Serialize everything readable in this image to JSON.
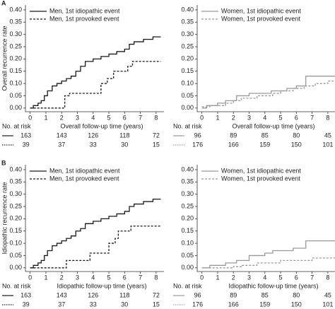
{
  "chart_data": [
    {
      "type": "line",
      "step": true,
      "panel_label": "A",
      "y_label": "Overall recurrence rate",
      "x_label": "Overall follow-up time (years)",
      "at_risk_label": "No. at risk",
      "legend": "upper left",
      "xlim": [
        -0.3,
        8.5
      ],
      "xticks": [
        0,
        1,
        2,
        3,
        4,
        5,
        6,
        7,
        8
      ],
      "ylim": [
        -0.015,
        0.42
      ],
      "yticks": [
        {
          "value": 0,
          "label": "0.00"
        },
        {
          "value": 0.05,
          "label": "0.05"
        },
        {
          "value": 0.1,
          "label": "0.10"
        },
        {
          "value": 0.15,
          "label": "0.15"
        },
        {
          "value": 0.2,
          "label": "0.20"
        },
        {
          "value": 0.25,
          "label": "0.25"
        },
        {
          "value": 0.3,
          "label": "0.30"
        },
        {
          "value": 0.35,
          "label": "0.35"
        },
        {
          "value": 0.4,
          "label": "0.40"
        }
      ],
      "series": [
        {
          "name": "Men, 1st idiopathic event",
          "color": "#1a1a1a",
          "dash": false,
          "at_risk": [
            163,
            143,
            126,
            118,
            72
          ],
          "x": [
            0,
            0.2,
            0.5,
            0.7,
            0.9,
            1.1,
            1.4,
            1.7,
            2.0,
            2.3,
            2.6,
            2.9,
            3.2,
            3.5,
            4.0,
            4.5,
            5.0,
            5.5,
            6.0,
            6.3,
            6.6,
            7.2,
            7.8,
            8.3
          ],
          "values": [
            0,
            0.01,
            0.02,
            0.03,
            0.05,
            0.07,
            0.09,
            0.1,
            0.11,
            0.12,
            0.13,
            0.15,
            0.17,
            0.19,
            0.2,
            0.21,
            0.22,
            0.23,
            0.24,
            0.26,
            0.27,
            0.28,
            0.29,
            0.29
          ]
        },
        {
          "name": "Men, 1st provoked event",
          "color": "#1a1a1a",
          "dash": true,
          "at_risk": [
            39,
            37,
            33,
            30,
            15
          ],
          "x": [
            0,
            2.2,
            2.5,
            4.5,
            4.9,
            5.3,
            6.2,
            6.5,
            8.3
          ],
          "values": [
            0,
            0.05,
            0.06,
            0.1,
            0.12,
            0.15,
            0.17,
            0.19,
            0.19
          ]
        }
      ]
    },
    {
      "type": "line",
      "step": true,
      "x_label": "Overall follow-up time (years)",
      "at_risk_label": "No. at risk",
      "legend": "upper left",
      "xlim": [
        -0.3,
        8.5
      ],
      "xticks": [
        0,
        1,
        2,
        3,
        4,
        5,
        6,
        7,
        8
      ],
      "ylim": [
        -0.015,
        0.42
      ],
      "yticks": [
        {
          "value": 0,
          "label": "0.00"
        },
        {
          "value": 0.05,
          "label": "0.05"
        },
        {
          "value": 0.1,
          "label": "0.10"
        },
        {
          "value": 0.15,
          "label": "0.15"
        },
        {
          "value": 0.2,
          "label": "0.20"
        },
        {
          "value": 0.25,
          "label": "0.25"
        },
        {
          "value": 0.3,
          "label": "0.30"
        },
        {
          "value": 0.35,
          "label": "0.35"
        },
        {
          "value": 0.4,
          "label": "0.40"
        }
      ],
      "series": [
        {
          "name": "Women, 1st idiopathic event",
          "color": "#9a9a9a",
          "dash": false,
          "at_risk": [
            96,
            89,
            85,
            80,
            45
          ],
          "x": [
            0,
            0.3,
            1.0,
            1.5,
            2.2,
            3.0,
            4.4,
            5.4,
            6.0,
            6.6,
            8.5
          ],
          "values": [
            0,
            0.01,
            0.02,
            0.03,
            0.05,
            0.06,
            0.07,
            0.08,
            0.09,
            0.13,
            0.13
          ]
        },
        {
          "name": "Women, 1st provoked event",
          "color": "#9a9a9a",
          "dash": true,
          "at_risk": [
            176,
            166,
            159,
            150,
            101
          ],
          "x": [
            0,
            0.5,
            1.5,
            2.0,
            2.5,
            3.5,
            4.5,
            5.0,
            5.8,
            6.5,
            7.2,
            8.0,
            8.5
          ],
          "values": [
            0.005,
            0.01,
            0.02,
            0.03,
            0.04,
            0.05,
            0.06,
            0.07,
            0.08,
            0.09,
            0.1,
            0.11,
            0.11
          ]
        }
      ]
    },
    {
      "type": "line",
      "step": true,
      "panel_label": "B",
      "y_label": "Idiopathic recurrence rate",
      "x_label": "Idiopathic follow-up time (years)",
      "at_risk_label": "No. at risk",
      "legend": "upper left",
      "xlim": [
        -0.3,
        8.5
      ],
      "xticks": [
        0,
        1,
        2,
        3,
        4,
        5,
        6,
        7,
        8
      ],
      "ylim": [
        -0.015,
        0.42
      ],
      "yticks": [
        {
          "value": 0,
          "label": "0.00"
        },
        {
          "value": 0.05,
          "label": "0.05"
        },
        {
          "value": 0.1,
          "label": "0.10"
        },
        {
          "value": 0.15,
          "label": "0.15"
        },
        {
          "value": 0.2,
          "label": "0.20"
        },
        {
          "value": 0.25,
          "label": "0.25"
        },
        {
          "value": 0.3,
          "label": "0.30"
        },
        {
          "value": 0.35,
          "label": "0.35"
        },
        {
          "value": 0.4,
          "label": "0.40"
        }
      ],
      "series": [
        {
          "name": "Men, 1st idiopathic event",
          "color": "#1a1a1a",
          "dash": false,
          "at_risk": [
            163,
            143,
            126,
            118,
            72
          ],
          "x": [
            0,
            0.2,
            0.5,
            0.7,
            0.9,
            1.1,
            1.4,
            1.7,
            2.0,
            2.3,
            2.6,
            2.9,
            3.2,
            3.5,
            4.0,
            4.5,
            5.0,
            5.5,
            6.0,
            6.3,
            6.6,
            7.2,
            7.8,
            8.3
          ],
          "values": [
            0,
            0.01,
            0.02,
            0.03,
            0.05,
            0.07,
            0.09,
            0.1,
            0.11,
            0.12,
            0.13,
            0.15,
            0.16,
            0.18,
            0.19,
            0.2,
            0.21,
            0.22,
            0.23,
            0.25,
            0.26,
            0.27,
            0.28,
            0.28
          ]
        },
        {
          "name": "Men, 1st provoked event",
          "color": "#1a1a1a",
          "dash": true,
          "at_risk": [
            39,
            37,
            33,
            30,
            15
          ],
          "x": [
            0,
            2.3,
            3.8,
            5.0,
            5.4,
            5.6,
            6.4,
            8.3
          ],
          "values": [
            0,
            0.03,
            0.06,
            0.1,
            0.12,
            0.15,
            0.17,
            0.17
          ]
        }
      ]
    },
    {
      "type": "line",
      "step": true,
      "x_label": "Idiopathic follow-up time (years)",
      "at_risk_label": "No. at risk",
      "legend": "upper left",
      "xlim": [
        -0.3,
        8.5
      ],
      "xticks": [
        0,
        1,
        2,
        3,
        4,
        5,
        6,
        7,
        8
      ],
      "ylim": [
        -0.015,
        0.42
      ],
      "yticks": [
        {
          "value": 0,
          "label": "0.00"
        },
        {
          "value": 0.05,
          "label": "0.05"
        },
        {
          "value": 0.1,
          "label": "0.10"
        },
        {
          "value": 0.15,
          "label": "0.15"
        },
        {
          "value": 0.2,
          "label": "0.20"
        },
        {
          "value": 0.25,
          "label": "0.25"
        },
        {
          "value": 0.3,
          "label": "0.30"
        },
        {
          "value": 0.35,
          "label": "0.35"
        },
        {
          "value": 0.4,
          "label": "0.40"
        }
      ],
      "series": [
        {
          "name": "Women, 1st idiopathic event",
          "color": "#9a9a9a",
          "dash": false,
          "at_risk": [
            96,
            89,
            85,
            80,
            45
          ],
          "x": [
            0,
            0.5,
            1.5,
            2.2,
            3.0,
            4.0,
            4.5,
            5.8,
            6.6,
            8.5
          ],
          "values": [
            0,
            0.01,
            0.02,
            0.03,
            0.05,
            0.06,
            0.07,
            0.08,
            0.11,
            0.11
          ]
        },
        {
          "name": "Women, 1st provoked event",
          "color": "#9a9a9a",
          "dash": true,
          "at_risk": [
            176,
            166,
            159,
            150,
            101
          ],
          "x": [
            0,
            2.0,
            2.5,
            3.5,
            5.0,
            7.0,
            8.5
          ],
          "values": [
            0,
            0.005,
            0.01,
            0.02,
            0.03,
            0.04,
            0.04
          ]
        }
      ]
    }
  ]
}
